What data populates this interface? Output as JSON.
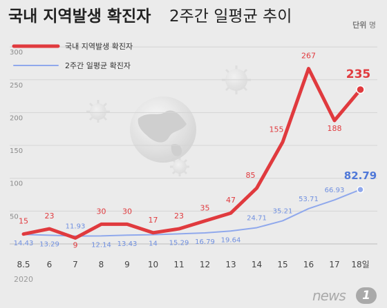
{
  "header": {
    "title_bold": "국내 지역발생 확진자",
    "title_light": "2주간 일평균 추이",
    "unit_label": "단위",
    "unit_value": "명"
  },
  "chart_data": {
    "type": "line",
    "categories": [
      "8.5",
      "6",
      "7",
      "8",
      "9",
      "10",
      "11",
      "12",
      "13",
      "14",
      "15",
      "16",
      "17",
      "18일"
    ],
    "year_label": "2020",
    "ylim": [
      0,
      300
    ],
    "yticks": [
      50,
      100,
      150,
      200,
      250,
      300
    ],
    "grid": true,
    "legend_placement": "top-left",
    "series": [
      {
        "name": "국내 지역발생 확진자",
        "color": "#e03a3e",
        "values": [
          15,
          23,
          9,
          30,
          30,
          17,
          23,
          35,
          47,
          85,
          155,
          267,
          188,
          235
        ],
        "labels": [
          "15",
          "23",
          "9",
          "30",
          "30",
          "17",
          "23",
          "35",
          "47",
          "85",
          "155",
          "267",
          "188",
          "235"
        ]
      },
      {
        "name": "2주간 일평균 확진자",
        "color": "#8fa8ec",
        "values": [
          14.43,
          13.29,
          11.93,
          12.14,
          13.43,
          14,
          15.29,
          16.79,
          19.64,
          24.71,
          35.21,
          53.71,
          66.93,
          82.79
        ],
        "labels": [
          "14.43",
          "13.29",
          "11.93",
          "12.14",
          "13.43",
          "14",
          "15.29",
          "16.79",
          "19.64",
          "24.71",
          "35.21",
          "53.71",
          "66.93",
          "82.79"
        ]
      }
    ]
  },
  "footer": {
    "logo_word": "news",
    "logo_number": "1"
  }
}
